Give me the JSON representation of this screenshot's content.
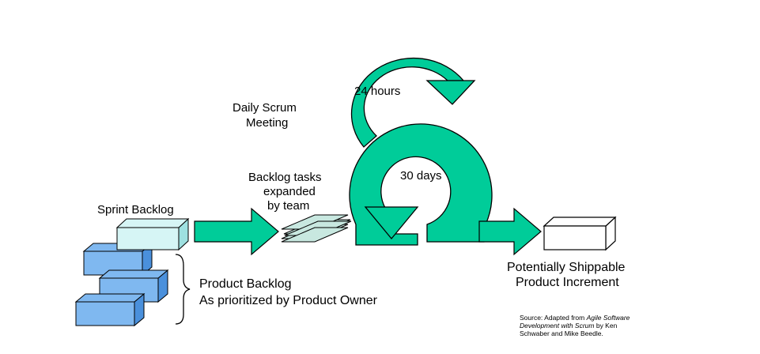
{
  "colors": {
    "loop_green": "#00cc99",
    "loop_outline": "#000000",
    "product_blue": "#7fb8f0",
    "product_blue_side": "#4a90dc",
    "sprint_cyan": "#d6f5f5",
    "sprint_cyan_side": "#9ee0e0",
    "tasks_gray": "#c8e8e0",
    "increment_white": "#ffffff"
  },
  "labels": {
    "daily_scrum_line1": "Daily Scrum",
    "daily_scrum_line2": "Meeting",
    "twenty_four_hours": "24 hours",
    "thirty_days": "30 days",
    "backlog_tasks_line1": "Backlog tasks",
    "backlog_tasks_line2": "expanded",
    "backlog_tasks_line3": "by team",
    "sprint_backlog": "Sprint Backlog",
    "product_backlog_line1": "Product Backlog",
    "product_backlog_line2": "As prioritized by Product Owner",
    "increment_line1": "Potentially Shippable",
    "increment_line2": "Product Increment"
  },
  "source": {
    "prefix": "Source: Adapted from ",
    "book_part1": "Agile Software",
    "book_part2": "Development with Scrum",
    "suffix1": " by Ken",
    "line3": "Schwaber and Mike Beedle."
  }
}
